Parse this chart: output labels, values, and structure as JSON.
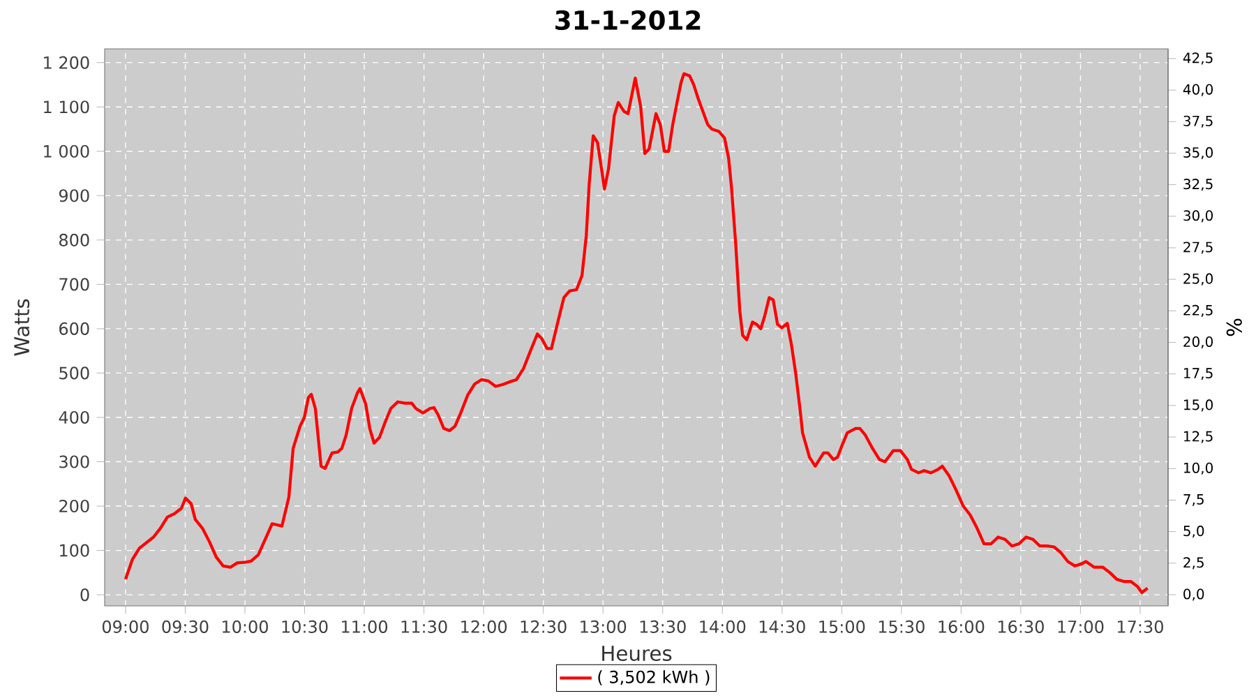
{
  "chart_data": {
    "type": "line",
    "title": "31-1-2012",
    "xlabel": "Heures",
    "ylabel": "Watts",
    "y2label": "%",
    "x": [
      9.0,
      9.058,
      9.116,
      9.234,
      9.292,
      9.35,
      9.41,
      9.468,
      9.502,
      9.55,
      9.584,
      9.644,
      9.702,
      9.76,
      9.818,
      9.878,
      9.936,
      9.994,
      10.052,
      10.112,
      10.17,
      10.228,
      10.264,
      10.31,
      10.368,
      10.404,
      10.462,
      10.498,
      10.532,
      10.556,
      10.59,
      10.638,
      10.672,
      10.73,
      10.778,
      10.812,
      10.848,
      10.894,
      10.942,
      10.964,
      11.012,
      11.046,
      11.082,
      11.128,
      11.176,
      11.222,
      11.28,
      11.34,
      11.398,
      11.432,
      11.492,
      11.55,
      11.584,
      11.62,
      11.666,
      11.714,
      11.76,
      11.808,
      11.866,
      11.924,
      11.982,
      12.04,
      12.1,
      12.158,
      12.216,
      12.274,
      12.334,
      12.392,
      12.45,
      12.486,
      12.532,
      12.568,
      12.626,
      12.672,
      12.72,
      12.778,
      12.824,
      12.86,
      12.884,
      12.918,
      12.954,
      12.988,
      13.012,
      13.046,
      13.094,
      13.128,
      13.176,
      13.21,
      13.27,
      13.316,
      13.35,
      13.386,
      13.444,
      13.48,
      13.514,
      13.55,
      13.584,
      13.62,
      13.654,
      13.678,
      13.726,
      13.76,
      13.796,
      13.83,
      13.878,
      13.912,
      13.97,
      14.018,
      14.052,
      14.076,
      14.112,
      14.146,
      14.17,
      14.204,
      14.252,
      14.286,
      14.322,
      14.356,
      14.392,
      14.426,
      14.462,
      14.498,
      14.544,
      14.578,
      14.614,
      14.65,
      14.672,
      14.73,
      14.778,
      14.848,
      14.884,
      14.93,
      14.964,
      15.0,
      15.046,
      15.116,
      15.152,
      15.198,
      15.258,
      15.316,
      15.362,
      15.432,
      15.492,
      15.55,
      15.584,
      15.644,
      15.69,
      15.748,
      15.808,
      15.842,
      15.9,
      15.96,
      16.018,
      16.076,
      16.134,
      16.192,
      16.252,
      16.31,
      16.368,
      16.426,
      16.486,
      16.544,
      16.602,
      16.66,
      16.72,
      16.778,
      16.836,
      16.894,
      16.954,
      17.012,
      17.046,
      17.116,
      17.188,
      17.246,
      17.304,
      17.362,
      17.422,
      17.48,
      17.514,
      17.562
    ],
    "series": [
      {
        "name": "( 3,502 kWh )",
        "color": "#ff0000",
        "values": [
          35,
          80,
          105,
          130,
          150,
          175,
          183,
          195,
          218,
          205,
          170,
          150,
          120,
          85,
          65,
          62,
          72,
          73,
          76,
          90,
          125,
          160,
          158,
          155,
          220,
          330,
          380,
          400,
          445,
          452,
          420,
          290,
          285,
          320,
          322,
          330,
          360,
          420,
          455,
          465,
          430,
          375,
          342,
          355,
          390,
          420,
          435,
          432,
          432,
          420,
          410,
          420,
          422,
          405,
          375,
          370,
          380,
          410,
          450,
          475,
          485,
          482,
          470,
          474,
          480,
          485,
          510,
          550,
          588,
          578,
          555,
          555,
          620,
          670,
          685,
          688,
          720,
          810,
          925,
          1035,
          1020,
          960,
          915,
          960,
          1080,
          1110,
          1090,
          1085,
          1165,
          1100,
          995,
          1005,
          1085,
          1060,
          1000,
          1000,
          1060,
          1110,
          1155,
          1175,
          1170,
          1150,
          1120,
          1095,
          1060,
          1050,
          1045,
          1030,
          985,
          920,
          790,
          640,
          585,
          575,
          615,
          610,
          600,
          630,
          670,
          665,
          610,
          602,
          612,
          565,
          500,
          420,
          365,
          310,
          290,
          320,
          320,
          305,
          310,
          335,
          365,
          375,
          375,
          360,
          330,
          305,
          300,
          325,
          325,
          305,
          283,
          275,
          280,
          275,
          283,
          290,
          268,
          235,
          200,
          180,
          150,
          115,
          115,
          130,
          125,
          110,
          115,
          130,
          125,
          110,
          110,
          108,
          95,
          75,
          65,
          70,
          75,
          62,
          62,
          50,
          35,
          30,
          30,
          18,
          5,
          15
        ]
      }
    ],
    "xlim": [
      8.825,
      17.734
    ],
    "xticks": [
      {
        "value": 9,
        "label": "09:00"
      },
      {
        "value": 9.5,
        "label": "09:30"
      },
      {
        "value": 10,
        "label": "10:00"
      },
      {
        "value": 10.5,
        "label": "10:30"
      },
      {
        "value": 11,
        "label": "11:00"
      },
      {
        "value": 11.5,
        "label": "11:30"
      },
      {
        "value": 12,
        "label": "12:00"
      },
      {
        "value": 12.5,
        "label": "12:30"
      },
      {
        "value": 13,
        "label": "13:00"
      },
      {
        "value": 13.5,
        "label": "13:30"
      },
      {
        "value": 14,
        "label": "14:00"
      },
      {
        "value": 14.5,
        "label": "14:30"
      },
      {
        "value": 15,
        "label": "15:00"
      },
      {
        "value": 15.5,
        "label": "15:30"
      },
      {
        "value": 16,
        "label": "16:00"
      },
      {
        "value": 16.5,
        "label": "16:30"
      },
      {
        "value": 17,
        "label": "17:00"
      },
      {
        "value": 17.5,
        "label": "17:30"
      }
    ],
    "ylim": [
      -25,
      1231
    ],
    "yticks": [
      0,
      100,
      200,
      300,
      400,
      500,
      600,
      700,
      800,
      900,
      {
        "value": 1000,
        "label": "1 000"
      },
      {
        "value": 1100,
        "label": "1 100"
      },
      {
        "value": 1200,
        "label": "1 200"
      }
    ],
    "y2lim": [
      -0.885,
      43.27
    ],
    "y2ticks": [
      {
        "value": 0,
        "label": "0,0"
      },
      {
        "value": 2.5,
        "label": "2,5"
      },
      {
        "value": 5,
        "label": "5,0"
      },
      {
        "value": 7.5,
        "label": "7,5"
      },
      {
        "value": 10,
        "label": "10,0"
      },
      {
        "value": 12.5,
        "label": "12,5"
      },
      {
        "value": 15,
        "label": "15,0"
      },
      {
        "value": 17.5,
        "label": "17,5"
      },
      {
        "value": 20,
        "label": "20,0"
      },
      {
        "value": 22.5,
        "label": "22,5"
      },
      {
        "value": 25,
        "label": "25,0"
      },
      {
        "value": 27.5,
        "label": "27,5"
      },
      {
        "value": 30,
        "label": "30,0"
      },
      {
        "value": 32.5,
        "label": "32,5"
      },
      {
        "value": 35,
        "label": "35,0"
      },
      {
        "value": 37.5,
        "label": "37,5"
      },
      {
        "value": 40,
        "label": "40,0"
      },
      {
        "value": 42.5,
        "label": "42,5"
      }
    ],
    "grid": true,
    "legend": "bottom",
    "marker": "none",
    "line_style": "solid"
  }
}
